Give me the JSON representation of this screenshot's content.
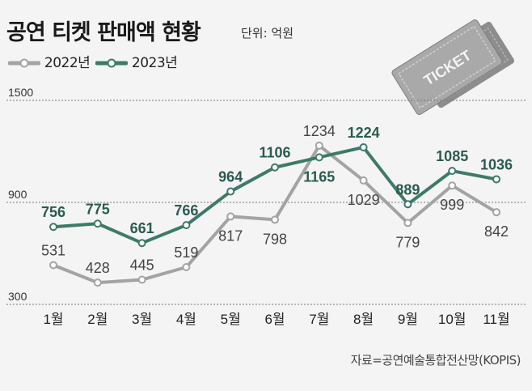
{
  "title": "공연 티켓 판매액 현황",
  "unit": "단위: 억원",
  "source": "자료=공연예술통합전산망(KOPIS)",
  "ticket_text": "TICKET",
  "colors": {
    "y2022": "#a3a3a3",
    "y2023": "#3d7a69",
    "label2022": "#444444",
    "label2023": "#2b5b4f"
  },
  "chart_data": {
    "type": "line",
    "categories": [
      "1월",
      "2월",
      "3월",
      "4월",
      "5월",
      "6월",
      "7월",
      "8월",
      "9월",
      "10월",
      "11월"
    ],
    "series": [
      {
        "name": "2022년",
        "values": [
          531,
          428,
          445,
          519,
          817,
          798,
          1234,
          1029,
          779,
          999,
          842
        ]
      },
      {
        "name": "2023년",
        "values": [
          756,
          775,
          661,
          766,
          964,
          1106,
          1165,
          1224,
          889,
          1085,
          1036
        ]
      }
    ],
    "yticks": [
      300,
      900,
      1500
    ],
    "ylim": [
      300,
      1500
    ],
    "grid": true,
    "legend": "top-left"
  }
}
